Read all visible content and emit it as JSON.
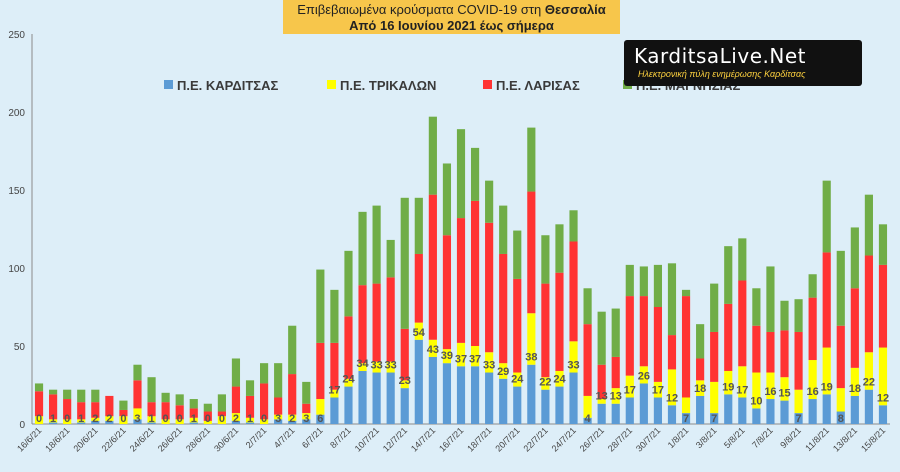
{
  "title": {
    "line1_prefix": "Επιβεβαιωμένα κρούσματα COVID-19 στη",
    "line1_region": "Θεσσαλία",
    "line2": "Από 16 Ιουνίου 2021 έως σήμερα"
  },
  "logo": {
    "main": "KarditsaLive.Net",
    "sub": "Ηλεκτρονική πύλη ενημέρωσης Καρδίτσας"
  },
  "chart_data": {
    "type": "bar",
    "stacked": true,
    "ylim": [
      0,
      250
    ],
    "yticks": [
      "0",
      "50",
      "100",
      "150",
      "200",
      "250"
    ],
    "grid": false,
    "legend_position": "top",
    "categories": [
      "16/6/21",
      "17/6/21",
      "18/6/21",
      "19/6/21",
      "20/6/21",
      "21/6/21",
      "22/6/21",
      "23/6/21",
      "24/6/21",
      "25/6/21",
      "26/6/21",
      "27/6/21",
      "28/6/21",
      "29/6/21",
      "30/6/21",
      "1/7/21",
      "2/7/21",
      "3/7/21",
      "4/7/21",
      "5/7/21",
      "6/7/21",
      "7/7/21",
      "8/7/21",
      "9/7/21",
      "10/7/21",
      "11/7/21",
      "12/7/21",
      "13/7/21",
      "14/7/21",
      "15/7/21",
      "16/7/21",
      "17/7/21",
      "18/7/21",
      "19/7/21",
      "20/7/21",
      "21/7/21",
      "22/7/21",
      "23/7/21",
      "24/7/21",
      "25/7/21",
      "26/7/21",
      "27/7/21",
      "28/7/21",
      "29/7/21",
      "30/7/21",
      "31/7/21",
      "1/8/21",
      "2/8/21",
      "3/8/21",
      "4/8/21",
      "5/8/21",
      "6/8/21",
      "7/8/21",
      "8/8/21",
      "9/8/21",
      "10/8/21",
      "11/8/21",
      "12/8/21",
      "13/8/21",
      "14/8/21",
      "15/8/21"
    ],
    "tick_labels": [
      "16/6/21",
      "18/6/21",
      "20/6/21",
      "22/6/21",
      "24/6/21",
      "26/6/21",
      "28/6/21",
      "30/6/21",
      "2/7/21",
      "4/7/21",
      "6/7/21",
      "8/7/21",
      "10/7/21",
      "12/7/21",
      "14/7/21",
      "16/7/21",
      "18/7/21",
      "20/7/21",
      "22/7/21",
      "24/7/21",
      "26/7/21",
      "28/7/21",
      "30/7/21",
      "1/8/21",
      "3/8/21",
      "5/8/21",
      "7/8/21",
      "9/8/21",
      "11/8/21",
      "13/8/21",
      "15/8/21"
    ],
    "series": [
      {
        "name": "Π.Ε. ΚΑΡΔΙΤΣΑΣ",
        "color": "#5b9bd5",
        "values": [
          0,
          1,
          0,
          1,
          2,
          2,
          0,
          3,
          1,
          0,
          0,
          1,
          0,
          0,
          2,
          1,
          0,
          3,
          2,
          3,
          6,
          17,
          24,
          34,
          33,
          33,
          23,
          54,
          43,
          39,
          37,
          37,
          33,
          29,
          24,
          38,
          22,
          24,
          33,
          4,
          13,
          13,
          17,
          26,
          17,
          12,
          7,
          18,
          7,
          19,
          17,
          10,
          16,
          15,
          7,
          16,
          19,
          8,
          18,
          22,
          12
        ]
      },
      {
        "name": "Π.Ε. ΤΡΙΚΑΛΩΝ",
        "color": "#ffff00",
        "values": [
          5,
          2,
          3,
          2,
          2,
          3,
          5,
          7,
          4,
          3,
          3,
          3,
          2,
          5,
          5,
          3,
          3,
          3,
          4,
          4,
          10,
          5,
          5,
          5,
          7,
          7,
          5,
          11,
          11,
          9,
          15,
          13,
          13,
          10,
          9,
          33,
          8,
          10,
          20,
          14,
          3,
          10,
          14,
          11,
          10,
          23,
          10,
          10,
          20,
          15,
          20,
          23,
          17,
          15,
          15,
          25,
          30,
          15,
          18,
          24,
          37
        ]
      },
      {
        "name": "Π.Ε. ΛΑΡΙΣΑΣ",
        "color": "#ff3333",
        "values": [
          16,
          16,
          13,
          11,
          10,
          13,
          4,
          18,
          9,
          11,
          9,
          6,
          6,
          3,
          17,
          14,
          23,
          11,
          26,
          6,
          36,
          30,
          40,
          50,
          50,
          54,
          33,
          44,
          93,
          73,
          80,
          93,
          83,
          70,
          60,
          78,
          60,
          63,
          64,
          46,
          22,
          20,
          51,
          45,
          48,
          22,
          65,
          14,
          32,
          43,
          55,
          30,
          26,
          30,
          37,
          40,
          61,
          40,
          51,
          62,
          53
        ]
      },
      {
        "name": "Π.Ε. ΜΑΓΝΗΣΙΑΣ",
        "color": "#70ad47",
        "values": [
          5,
          3,
          6,
          8,
          8,
          0,
          6,
          10,
          16,
          6,
          7,
          6,
          5,
          11,
          18,
          10,
          13,
          22,
          31,
          14,
          47,
          34,
          42,
          47,
          50,
          24,
          84,
          36,
          50,
          46,
          57,
          34,
          27,
          31,
          31,
          41,
          31,
          31,
          20,
          23,
          34,
          31,
          20,
          19,
          27,
          46,
          4,
          22,
          31,
          37,
          27,
          24,
          42,
          19,
          21,
          15,
          46,
          48,
          39,
          39,
          26
        ]
      }
    ]
  }
}
